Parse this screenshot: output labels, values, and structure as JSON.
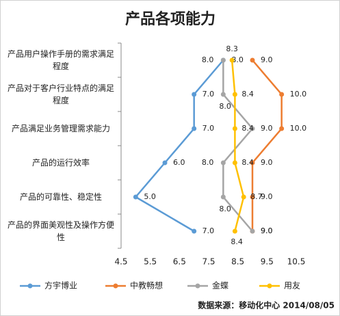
{
  "chart_data": {
    "type": "line",
    "orientation": "horizontal",
    "title": "产品各项能力",
    "categories": [
      "产品用户操作手册的需求满足程度",
      "产品对于客户行业特点的满足程度",
      "产品满足业务管理需求能力",
      "产品的运行效率",
      "产品的可靠性、稳定性",
      "产品的界面美观性及操作方便性"
    ],
    "series": [
      {
        "name": "方宇博业",
        "color": "#5b9bd5",
        "values": [
          8.0,
          7.0,
          7.0,
          6.0,
          5.0,
          7.0
        ],
        "value_labels": [
          "8.0",
          "7.0",
          "7.0",
          "6.0",
          "5.0",
          "7.0"
        ]
      },
      {
        "name": "中教畅想",
        "color": "#ed7d31",
        "values": [
          9.0,
          10.0,
          10.0,
          9.0,
          9.0,
          9.0
        ],
        "value_labels": [
          "9.0",
          "10.0",
          "10.0",
          "9.0",
          "9.0",
          "9.0"
        ]
      },
      {
        "name": "金蝶",
        "color": "#a5a5a5",
        "values": [
          8.0,
          8.0,
          9.0,
          8.0,
          8.0,
          9.0
        ],
        "value_labels": [
          "8.0",
          "8.0",
          "9.0",
          "8.0",
          "8.0",
          "9.0"
        ]
      },
      {
        "name": "用友",
        "color": "#ffc000",
        "values": [
          8.3,
          8.4,
          8.4,
          8.4,
          8.7,
          8.4
        ],
        "value_labels": [
          "8.3",
          "8.4",
          "8.4",
          "8.4",
          "8.7",
          "8.4"
        ]
      }
    ],
    "xlim": [
      4.5,
      10.5
    ],
    "xticks": [
      4.5,
      5.5,
      6.5,
      7.5,
      8.5,
      9.5,
      10.5
    ],
    "legend": "bottom",
    "source": "数据来源：移动化中心 2014/08/05"
  }
}
